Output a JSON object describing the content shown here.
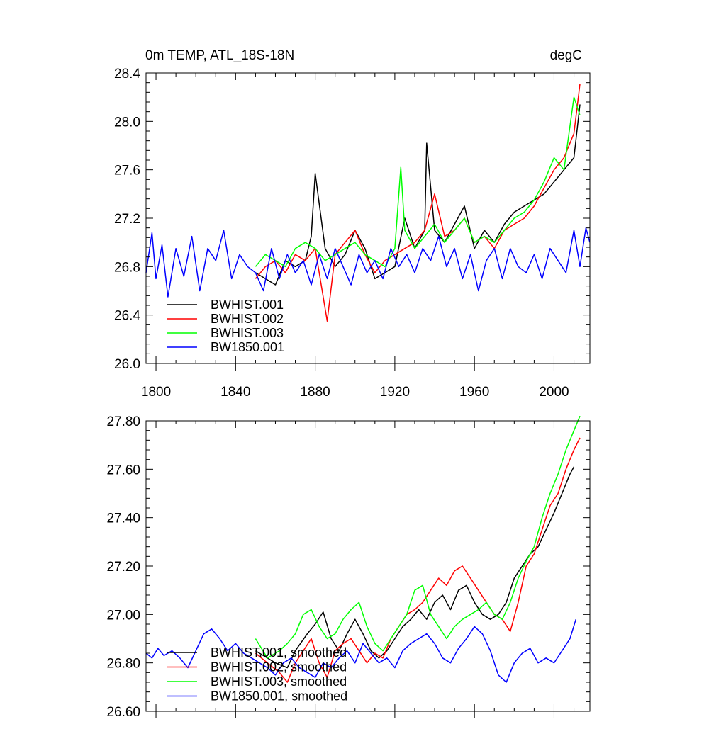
{
  "chart_data": [
    {
      "type": "line",
      "title": "0m TEMP, ATL_18S-18N",
      "units": "degC",
      "xlabel": "",
      "ylabel": "",
      "xlim": [
        1795,
        2018
      ],
      "ylim": [
        26.0,
        28.4
      ],
      "xticks": [
        1800,
        1840,
        1880,
        1920,
        1960,
        2000
      ],
      "xtick_labels": [
        "1800",
        "1840",
        "1880",
        "1920",
        "1960",
        "2000"
      ],
      "yticks": [
        26.0,
        26.4,
        26.8,
        27.2,
        27.6,
        28.0,
        28.4
      ],
      "ytick_labels": [
        "26.0",
        "26.4",
        "26.8",
        "27.2",
        "27.6",
        "28.0",
        "28.4"
      ],
      "legend_position": "bottom-left",
      "series": [
        {
          "name": "BWHIST.001",
          "color": "#000000",
          "x": [
            1850,
            1855,
            1860,
            1865,
            1870,
            1875,
            1878,
            1880,
            1885,
            1890,
            1895,
            1900,
            1905,
            1910,
            1915,
            1920,
            1925,
            1930,
            1935,
            1936,
            1940,
            1945,
            1950,
            1955,
            1960,
            1965,
            1970,
            1975,
            1980,
            1985,
            1990,
            1995,
            2000,
            2005,
            2010,
            2013
          ],
          "values": [
            26.75,
            26.7,
            26.65,
            26.85,
            26.8,
            26.85,
            27.05,
            27.57,
            26.95,
            26.8,
            26.9,
            27.1,
            26.95,
            26.7,
            26.75,
            26.8,
            27.2,
            26.95,
            27.1,
            27.82,
            27.1,
            27.0,
            27.15,
            27.3,
            26.95,
            27.1,
            27.0,
            27.15,
            27.25,
            27.3,
            27.35,
            27.4,
            27.5,
            27.6,
            27.7,
            28.14
          ]
        },
        {
          "name": "BWHIST.002",
          "color": "#ff0000",
          "x": [
            1850,
            1855,
            1860,
            1865,
            1870,
            1875,
            1880,
            1886,
            1890,
            1895,
            1900,
            1905,
            1910,
            1915,
            1920,
            1925,
            1930,
            1935,
            1940,
            1945,
            1950,
            1955,
            1960,
            1965,
            1970,
            1975,
            1980,
            1985,
            1990,
            1995,
            2000,
            2005,
            2010,
            2013
          ],
          "values": [
            26.7,
            26.8,
            26.85,
            26.75,
            26.9,
            26.85,
            26.95,
            26.35,
            26.9,
            27.0,
            27.1,
            26.9,
            26.75,
            26.85,
            26.9,
            26.95,
            27.0,
            27.1,
            27.4,
            27.05,
            27.1,
            27.2,
            27.0,
            27.05,
            26.95,
            27.1,
            27.15,
            27.2,
            27.3,
            27.45,
            27.6,
            27.7,
            27.9,
            28.31
          ]
        },
        {
          "name": "BWHIST.003",
          "color": "#00ff00",
          "x": [
            1850,
            1855,
            1860,
            1865,
            1870,
            1875,
            1880,
            1885,
            1890,
            1895,
            1900,
            1905,
            1910,
            1915,
            1920,
            1923,
            1925,
            1930,
            1935,
            1940,
            1945,
            1950,
            1955,
            1960,
            1965,
            1970,
            1975,
            1980,
            1985,
            1990,
            1995,
            2000,
            2005,
            2010,
            2013
          ],
          "values": [
            26.8,
            26.9,
            26.85,
            26.8,
            26.95,
            27.0,
            26.95,
            26.85,
            26.9,
            26.95,
            27.0,
            26.9,
            26.85,
            26.8,
            26.95,
            27.62,
            27.1,
            26.95,
            27.05,
            27.15,
            27.0,
            27.1,
            27.2,
            27.0,
            27.05,
            27.0,
            27.1,
            27.2,
            27.25,
            27.35,
            27.5,
            27.7,
            27.6,
            28.2,
            28.05
          ]
        },
        {
          "name": "BW1850.001",
          "color": "#0000ff",
          "x": [
            1795,
            1798,
            1800,
            1803,
            1806,
            1810,
            1814,
            1818,
            1822,
            1826,
            1830,
            1834,
            1838,
            1842,
            1846,
            1850,
            1854,
            1858,
            1862,
            1866,
            1870,
            1874,
            1878,
            1882,
            1886,
            1890,
            1894,
            1898,
            1902,
            1906,
            1910,
            1914,
            1918,
            1922,
            1926,
            1930,
            1934,
            1938,
            1942,
            1946,
            1950,
            1954,
            1958,
            1962,
            1966,
            1970,
            1974,
            1978,
            1982,
            1986,
            1990,
            1994,
            1998,
            2002,
            2006,
            2010,
            2013,
            2016,
            2018
          ],
          "values": [
            26.75,
            27.08,
            26.7,
            26.98,
            26.55,
            26.95,
            26.72,
            27.05,
            26.6,
            26.95,
            26.85,
            27.1,
            26.7,
            26.9,
            26.8,
            26.75,
            26.6,
            26.95,
            26.7,
            26.9,
            26.75,
            26.85,
            26.65,
            26.9,
            26.7,
            26.95,
            26.8,
            26.65,
            26.9,
            26.75,
            26.85,
            26.7,
            26.95,
            26.8,
            26.9,
            26.75,
            26.95,
            26.85,
            27.05,
            26.8,
            26.95,
            26.7,
            26.9,
            26.6,
            26.85,
            26.95,
            26.7,
            26.95,
            26.8,
            26.75,
            26.9,
            26.7,
            26.95,
            26.85,
            26.75,
            27.1,
            26.8,
            27.12,
            27.0
          ]
        }
      ]
    },
    {
      "type": "line",
      "title": "",
      "xlabel": "",
      "ylabel": "",
      "xlim": [
        1795,
        2018
      ],
      "ylim": [
        26.6,
        27.8
      ],
      "xticks": [
        1800,
        1840,
        1880,
        1920,
        1960,
        2000
      ],
      "yticks": [
        26.6,
        26.8,
        27.0,
        27.2,
        27.4,
        27.6,
        27.8
      ],
      "ytick_labels": [
        "26.60",
        "26.80",
        "27.00",
        "27.20",
        "27.40",
        "27.60",
        "27.80"
      ],
      "legend_position": "bottom-left",
      "series": [
        {
          "name": "BWHIST.001, smoothed",
          "color": "#000000",
          "x": [
            1850,
            1860,
            1866,
            1870,
            1876,
            1880,
            1884,
            1888,
            1892,
            1896,
            1900,
            1904,
            1908,
            1912,
            1916,
            1920,
            1924,
            1928,
            1932,
            1936,
            1940,
            1944,
            1948,
            1952,
            1956,
            1960,
            1964,
            1968,
            1972,
            1976,
            1980,
            1984,
            1988,
            1992,
            1996,
            2000,
            2004,
            2008,
            2010
          ],
          "values": [
            26.85,
            26.8,
            26.78,
            26.85,
            26.92,
            26.96,
            27.01,
            26.9,
            26.85,
            26.92,
            26.98,
            26.92,
            26.85,
            26.82,
            26.85,
            26.9,
            26.95,
            26.98,
            27.02,
            26.98,
            27.05,
            27.08,
            27.02,
            27.1,
            27.12,
            27.05,
            27.0,
            26.98,
            27.0,
            27.05,
            27.15,
            27.2,
            27.25,
            27.28,
            27.35,
            27.42,
            27.5,
            27.58,
            27.61
          ]
        },
        {
          "name": "BWHIST.002, smoothed",
          "color": "#ff0000",
          "x": [
            1850,
            1856,
            1862,
            1866,
            1870,
            1874,
            1878,
            1882,
            1886,
            1890,
            1894,
            1898,
            1902,
            1906,
            1910,
            1914,
            1918,
            1922,
            1926,
            1930,
            1934,
            1938,
            1942,
            1946,
            1950,
            1954,
            1958,
            1962,
            1966,
            1970,
            1974,
            1978,
            1982,
            1986,
            1990,
            1994,
            1998,
            2002,
            2006,
            2010,
            2013
          ],
          "values": [
            26.84,
            26.8,
            26.76,
            26.72,
            26.8,
            26.85,
            26.9,
            26.8,
            26.74,
            26.85,
            26.88,
            26.9,
            26.85,
            26.8,
            26.84,
            26.82,
            26.9,
            26.95,
            27.0,
            27.02,
            27.05,
            27.1,
            27.15,
            27.12,
            27.18,
            27.2,
            27.15,
            27.1,
            27.05,
            27.0,
            26.98,
            26.93,
            27.05,
            27.2,
            27.25,
            27.35,
            27.45,
            27.5,
            27.6,
            27.68,
            27.73
          ]
        },
        {
          "name": "BWHIST.003, smoothed",
          "color": "#00ff00",
          "x": [
            1850,
            1856,
            1862,
            1866,
            1870,
            1874,
            1878,
            1882,
            1886,
            1890,
            1894,
            1898,
            1902,
            1906,
            1910,
            1914,
            1918,
            1922,
            1926,
            1930,
            1934,
            1938,
            1942,
            1946,
            1950,
            1954,
            1958,
            1962,
            1966,
            1970,
            1974,
            1978,
            1982,
            1986,
            1990,
            1994,
            1998,
            2002,
            2006,
            2010,
            2013
          ],
          "values": [
            26.9,
            26.82,
            26.85,
            26.88,
            26.92,
            27.0,
            27.02,
            26.95,
            26.9,
            26.92,
            26.98,
            27.02,
            27.05,
            26.95,
            26.88,
            26.85,
            26.9,
            26.95,
            27.0,
            27.1,
            27.12,
            27.0,
            26.95,
            26.9,
            26.95,
            26.98,
            27.0,
            27.02,
            27.05,
            27.0,
            26.98,
            27.05,
            27.15,
            27.22,
            27.28,
            27.4,
            27.5,
            27.58,
            27.68,
            27.76,
            27.82
          ]
        },
        {
          "name": "BW1850.001, smoothed",
          "color": "#0000ff",
          "x": [
            1795,
            1798,
            1801,
            1804,
            1808,
            1812,
            1816,
            1820,
            1824,
            1828,
            1832,
            1836,
            1840,
            1844,
            1848,
            1852,
            1856,
            1860,
            1864,
            1868,
            1872,
            1876,
            1880,
            1884,
            1888,
            1892,
            1896,
            1900,
            1904,
            1908,
            1912,
            1916,
            1920,
            1924,
            1928,
            1932,
            1936,
            1940,
            1944,
            1948,
            1952,
            1956,
            1960,
            1964,
            1968,
            1972,
            1976,
            1980,
            1984,
            1988,
            1992,
            1996,
            2000,
            2004,
            2008,
            2011
          ],
          "values": [
            26.84,
            26.82,
            26.86,
            26.83,
            26.85,
            26.82,
            26.78,
            26.85,
            26.92,
            26.94,
            26.9,
            26.85,
            26.88,
            26.84,
            26.82,
            26.8,
            26.78,
            26.75,
            26.8,
            26.82,
            26.78,
            26.76,
            26.74,
            26.8,
            26.78,
            26.82,
            26.85,
            26.8,
            26.88,
            26.84,
            26.8,
            26.82,
            26.78,
            26.85,
            26.88,
            26.9,
            26.92,
            26.88,
            26.82,
            26.8,
            26.86,
            26.9,
            26.95,
            26.92,
            26.85,
            26.75,
            26.72,
            26.8,
            26.84,
            26.86,
            26.8,
            26.82,
            26.8,
            26.85,
            26.9,
            26.98
          ]
        }
      ]
    }
  ]
}
